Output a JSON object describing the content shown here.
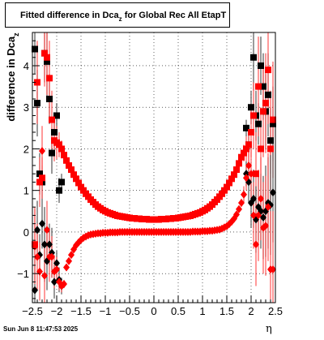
{
  "chart_data": {
    "type": "scatter",
    "title": "Fitted difference in Dca",
    "title_subscript": "z",
    "title_suffix": " for Global Rec All EtapT",
    "ylabel": "difference in Dca",
    "ylabel_subscript": "z",
    "xlabel": "η",
    "xlim": [
      -2.5,
      2.5
    ],
    "ylim": [
      -1.7,
      4.8
    ],
    "x_ticks": [
      -2.5,
      -2,
      -1.5,
      -1,
      -0.5,
      0,
      0.5,
      1,
      1.5,
      2,
      2.5
    ],
    "x_tick_labels": [
      "−2.5",
      "−2",
      "−1.5",
      "−1",
      "−0.5",
      "0",
      "0.5",
      "1",
      "1.5",
      "2",
      "2.5"
    ],
    "y_ticks": [
      -1,
      0,
      1,
      2,
      3,
      4
    ],
    "y_tick_labels": [
      "−1",
      "0",
      "1",
      "2",
      "3",
      "4"
    ],
    "grid": "dotted",
    "series": [
      {
        "marker": "square",
        "color": "#000000",
        "x": [
          -2.45,
          -2.4,
          -2.35,
          -2.3,
          -2.25,
          -2.2,
          -2.15,
          -2.1,
          -2.05,
          -2.0,
          -1.95,
          -1.9,
          1.9,
          1.95,
          2.0,
          2.05,
          2.1,
          2.15,
          2.2,
          2.25,
          2.3,
          2.35,
          2.4,
          2.45
        ],
        "y": [
          4.4,
          3.1,
          1.4,
          1.2,
          4.3,
          4.1,
          3.2,
          1.9,
          2.4,
          2.8,
          1.0,
          1.2,
          2.5,
          2.1,
          3.0,
          4.2,
          2.8,
          2.6,
          4.0,
          3.5,
          2.9,
          3.3,
          2.2,
          2.6
        ],
        "yerr": [
          0.6,
          0.8,
          0.5,
          0.4,
          0.7,
          0.9,
          0.6,
          0.5,
          0.4,
          0.3,
          0.3,
          0.2,
          0.2,
          0.3,
          0.4,
          0.8,
          0.6,
          0.5,
          0.7,
          0.8,
          0.9,
          1.0,
          0.8,
          0.9
        ]
      },
      {
        "marker": "square",
        "color": "#ff0000",
        "x": [
          -2.45,
          -2.4,
          -2.35,
          -2.3,
          -2.25,
          -2.2,
          -2.15,
          -2.1,
          -2.05,
          -2.0,
          -1.95,
          -1.9,
          -1.85,
          -1.8,
          -1.75,
          -1.7,
          -1.65,
          -1.6,
          -1.55,
          -1.5,
          -1.45,
          -1.4,
          -1.35,
          -1.3,
          -1.25,
          -1.2,
          -1.15,
          -1.1,
          -1.05,
          -1.0,
          -0.95,
          -0.9,
          -0.85,
          -0.8,
          -0.75,
          -0.7,
          -0.65,
          -0.6,
          -0.55,
          -0.5,
          -0.45,
          -0.4,
          -0.35,
          -0.3,
          -0.25,
          -0.2,
          -0.15,
          -0.1,
          -0.05,
          0.0,
          0.05,
          0.1,
          0.15,
          0.2,
          0.25,
          0.3,
          0.35,
          0.4,
          0.45,
          0.5,
          0.55,
          0.6,
          0.65,
          0.7,
          0.75,
          0.8,
          0.85,
          0.9,
          0.95,
          1.0,
          1.05,
          1.1,
          1.15,
          1.2,
          1.25,
          1.3,
          1.35,
          1.4,
          1.45,
          1.5,
          1.55,
          1.6,
          1.65,
          1.7,
          1.75,
          1.8,
          1.85,
          1.9,
          1.95,
          2.0,
          2.05,
          2.1,
          2.15,
          2.2,
          2.25,
          2.3,
          2.35,
          2.4,
          2.45
        ],
        "y": [
          -0.3,
          3.6,
          1.2,
          1.3,
          4.3,
          4.2,
          3.7,
          2.7,
          2.2,
          2.15,
          2.1,
          2.0,
          1.85,
          1.72,
          1.6,
          1.5,
          1.38,
          1.28,
          1.18,
          1.08,
          1.0,
          0.92,
          0.85,
          0.78,
          0.72,
          0.66,
          0.61,
          0.57,
          0.53,
          0.5,
          0.47,
          0.45,
          0.43,
          0.41,
          0.39,
          0.38,
          0.37,
          0.36,
          0.35,
          0.34,
          0.33,
          0.33,
          0.32,
          0.32,
          0.31,
          0.31,
          0.31,
          0.3,
          0.3,
          0.3,
          0.3,
          0.3,
          0.31,
          0.31,
          0.31,
          0.32,
          0.32,
          0.33,
          0.33,
          0.34,
          0.35,
          0.36,
          0.37,
          0.38,
          0.39,
          0.41,
          0.43,
          0.45,
          0.47,
          0.5,
          0.53,
          0.57,
          0.61,
          0.66,
          0.72,
          0.78,
          0.85,
          0.92,
          1.0,
          1.08,
          1.18,
          1.28,
          1.38,
          1.5,
          1.65,
          1.8,
          1.9,
          2.0,
          2.1,
          2.4,
          2.8,
          1.4,
          3.5,
          2.0,
          2.9,
          3.1,
          3.9,
          2.0,
          2.7
        ],
        "yerr": [
          0.9,
          1.0,
          0.6,
          0.5,
          0.8,
          0.9,
          0.9,
          0.7,
          0.5,
          0.4,
          0.3,
          0.2,
          0.1,
          0.08,
          0.06,
          0.05,
          0.04,
          0.03,
          0.03,
          0.02,
          0.02,
          0.02,
          0.02,
          0.02,
          0.02,
          0.02,
          0.02,
          0.02,
          0.02,
          0.02,
          0.02,
          0.02,
          0.02,
          0.02,
          0.02,
          0.02,
          0.02,
          0.02,
          0.02,
          0.02,
          0.02,
          0.02,
          0.02,
          0.02,
          0.02,
          0.02,
          0.02,
          0.02,
          0.02,
          0.02,
          0.02,
          0.02,
          0.02,
          0.02,
          0.02,
          0.02,
          0.02,
          0.02,
          0.02,
          0.02,
          0.02,
          0.02,
          0.02,
          0.02,
          0.02,
          0.02,
          0.02,
          0.02,
          0.02,
          0.02,
          0.02,
          0.02,
          0.02,
          0.02,
          0.02,
          0.02,
          0.02,
          0.02,
          0.02,
          0.02,
          0.03,
          0.03,
          0.04,
          0.05,
          0.06,
          0.1,
          0.2,
          0.3,
          0.4,
          0.6,
          0.8,
          1.0,
          1.2,
          1.0,
          1.1,
          1.2,
          1.3,
          1.4,
          1.4
        ]
      },
      {
        "marker": "diamond",
        "color": "#000000",
        "x": [
          -2.45,
          -2.4,
          -2.35,
          -2.3,
          -2.25,
          -2.2,
          -2.15,
          -2.1,
          -2.05,
          -2.0,
          -1.95,
          -1.9,
          1.9,
          1.95,
          2.0,
          2.05,
          2.1,
          2.15,
          2.2,
          2.25,
          2.3,
          2.35,
          2.4,
          2.45
        ],
        "y": [
          -1.4,
          0.05,
          -0.55,
          0.2,
          -0.3,
          -0.7,
          -0.3,
          -0.5,
          -1.2,
          -0.75,
          -1.15,
          -1.3,
          1.4,
          1.2,
          0.7,
          0.8,
          0.3,
          0.6,
          0.5,
          0.35,
          0.5,
          0.7,
          0.65,
          0.95
        ],
        "yerr": [
          0.8,
          0.7,
          0.5,
          0.6,
          0.9,
          0.7,
          0.5,
          0.6,
          0.4,
          0.3,
          0.3,
          0.2,
          0.3,
          0.5,
          0.6,
          0.7,
          0.8,
          0.8,
          0.9,
          1.0,
          1.1,
          1.1,
          1.2,
          1.2
        ]
      },
      {
        "marker": "diamond",
        "color": "#ff0000",
        "x": [
          -2.45,
          -2.4,
          -2.35,
          -2.3,
          -2.25,
          -2.2,
          -2.15,
          -2.1,
          -2.05,
          -2.0,
          -1.95,
          -1.9,
          -1.85,
          -1.8,
          -1.75,
          -1.7,
          -1.65,
          -1.6,
          -1.55,
          -1.5,
          -1.45,
          -1.4,
          -1.35,
          -1.3,
          -1.25,
          -1.2,
          -1.15,
          -1.1,
          -1.05,
          -1.0,
          -0.95,
          -0.9,
          -0.85,
          -0.8,
          -0.75,
          -0.7,
          -0.65,
          -0.6,
          -0.55,
          -0.5,
          -0.45,
          -0.4,
          -0.35,
          -0.3,
          -0.25,
          -0.2,
          -0.15,
          -0.1,
          -0.05,
          0.0,
          0.05,
          0.1,
          0.15,
          0.2,
          0.25,
          0.3,
          0.35,
          0.4,
          0.45,
          0.5,
          0.55,
          0.6,
          0.65,
          0.7,
          0.75,
          0.8,
          0.85,
          0.9,
          0.95,
          1.0,
          1.05,
          1.1,
          1.15,
          1.2,
          1.25,
          1.3,
          1.35,
          1.4,
          1.45,
          1.5,
          1.55,
          1.6,
          1.65,
          1.7,
          1.75,
          1.8,
          1.85,
          1.9,
          1.95,
          2.0,
          2.05,
          2.1,
          2.15,
          2.2,
          2.25,
          2.3,
          2.35,
          2.4,
          2.45
        ],
        "y": [
          -0.35,
          -0.6,
          -0.95,
          1.95,
          -1.05,
          0.05,
          -0.6,
          -0.6,
          -0.95,
          -0.9,
          -1.2,
          -1.3,
          -1.25,
          -0.85,
          -0.7,
          -0.55,
          -0.42,
          -0.32,
          -0.25,
          -0.19,
          -0.14,
          -0.11,
          -0.08,
          -0.06,
          -0.05,
          -0.04,
          -0.03,
          -0.03,
          -0.02,
          -0.02,
          -0.02,
          -0.01,
          -0.01,
          -0.01,
          -0.01,
          0.0,
          0.0,
          0.0,
          0.0,
          0.0,
          0.0,
          0.0,
          0.0,
          0.0,
          0.0,
          0.0,
          0.0,
          0.0,
          0.0,
          0.0,
          0.0,
          0.0,
          0.0,
          0.0,
          0.0,
          0.0,
          0.0,
          0.0,
          0.0,
          0.0,
          0.0,
          0.0,
          0.0,
          0.0,
          0.0,
          0.01,
          0.01,
          0.01,
          0.01,
          0.02,
          0.02,
          0.02,
          0.03,
          0.03,
          0.04,
          0.05,
          0.06,
          0.08,
          0.11,
          0.14,
          0.19,
          0.25,
          0.32,
          0.42,
          0.55,
          0.7,
          0.9,
          1.3,
          1.6,
          1.4,
          0.4,
          -0.3,
          0.4,
          0.8,
          0.1,
          0.15,
          0.6,
          -0.9,
          -0.9
        ],
        "yerr": [
          0.9,
          0.8,
          0.7,
          0.6,
          0.8,
          0.7,
          0.6,
          0.5,
          0.4,
          0.3,
          0.2,
          0.15,
          0.1,
          0.08,
          0.06,
          0.05,
          0.04,
          0.03,
          0.03,
          0.02,
          0.02,
          0.02,
          0.02,
          0.02,
          0.02,
          0.02,
          0.02,
          0.02,
          0.02,
          0.02,
          0.02,
          0.02,
          0.02,
          0.02,
          0.02,
          0.02,
          0.02,
          0.02,
          0.02,
          0.02,
          0.02,
          0.02,
          0.02,
          0.02,
          0.02,
          0.02,
          0.02,
          0.02,
          0.02,
          0.02,
          0.02,
          0.02,
          0.02,
          0.02,
          0.02,
          0.02,
          0.02,
          0.02,
          0.02,
          0.02,
          0.02,
          0.02,
          0.02,
          0.02,
          0.02,
          0.02,
          0.02,
          0.02,
          0.02,
          0.02,
          0.02,
          0.02,
          0.02,
          0.02,
          0.02,
          0.02,
          0.02,
          0.02,
          0.02,
          0.02,
          0.03,
          0.03,
          0.04,
          0.05,
          0.06,
          0.1,
          0.2,
          0.3,
          0.4,
          0.6,
          0.8,
          1.0,
          1.1,
          1.0,
          1.1,
          1.2,
          1.3,
          1.4,
          1.4
        ]
      }
    ]
  },
  "footer": {
    "datestamp": "Sun Jun  8 11:47:53 2025"
  }
}
